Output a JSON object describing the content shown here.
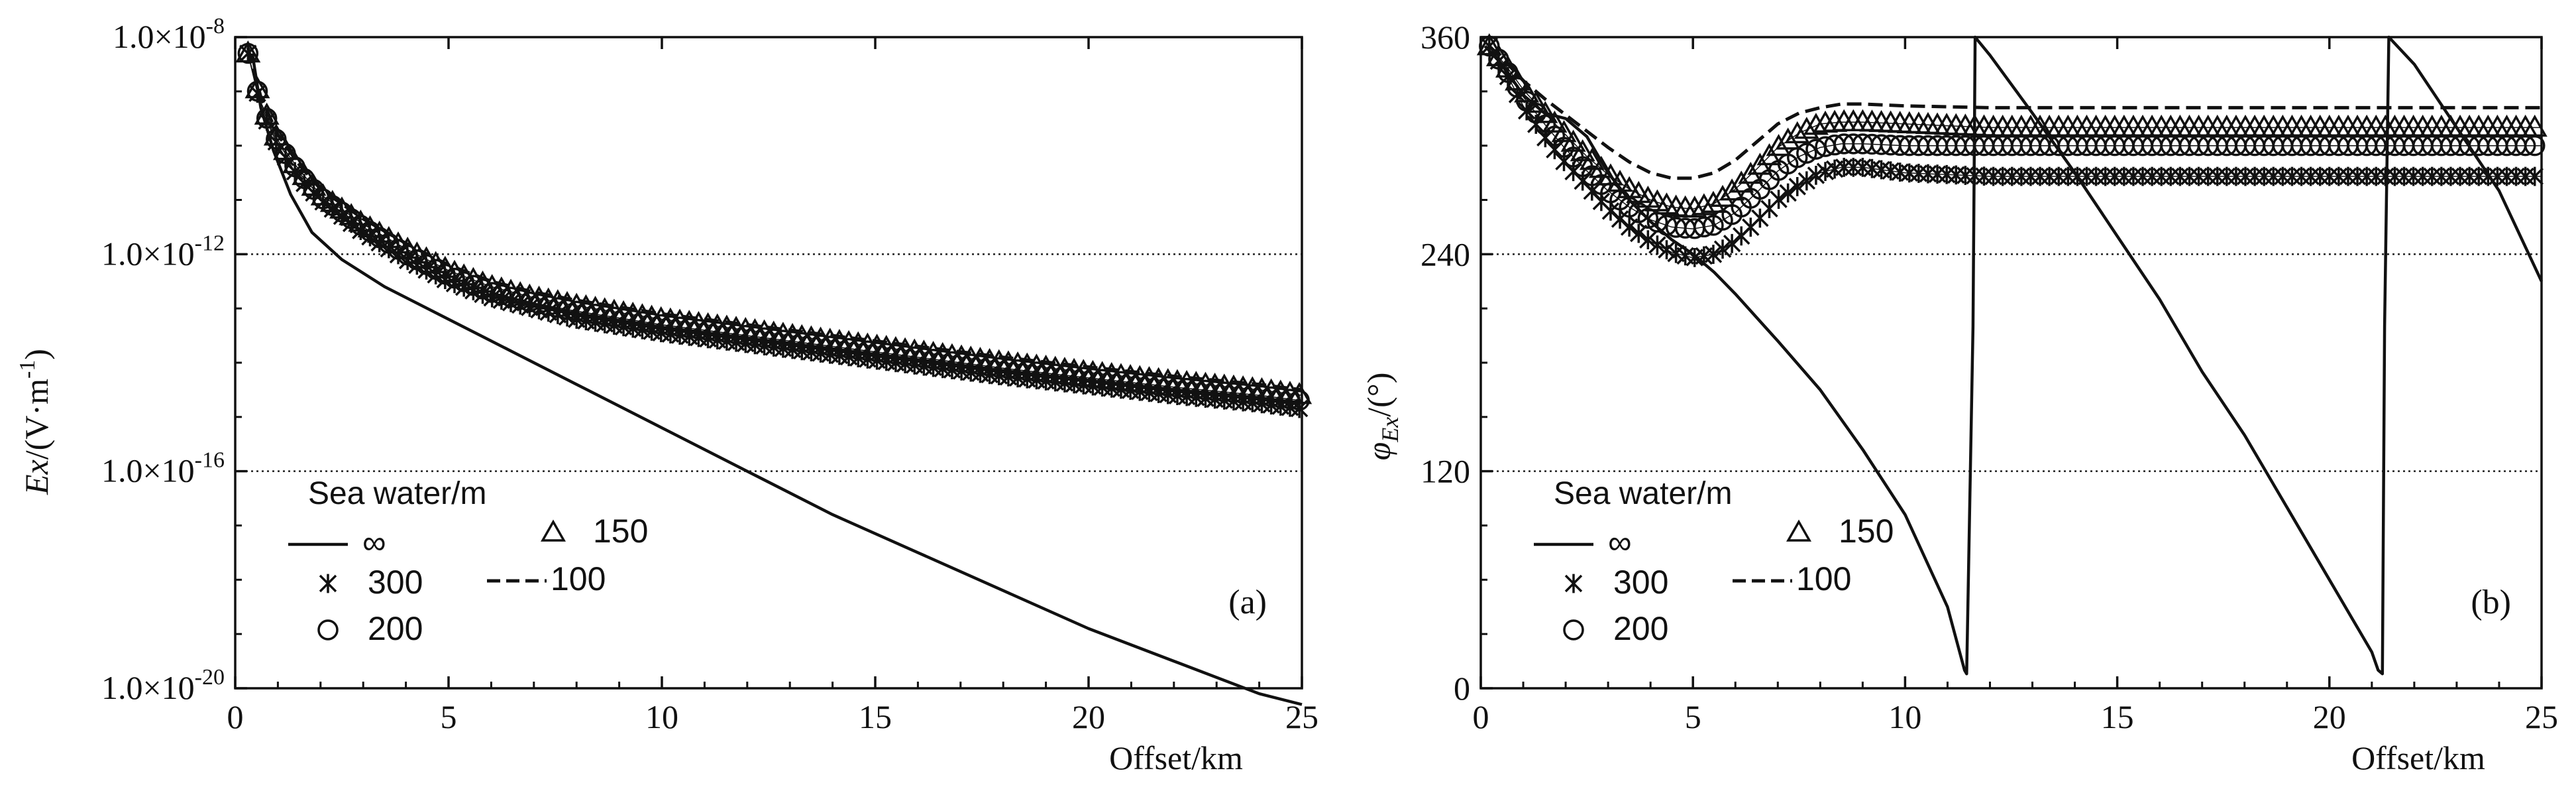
{
  "chart_data": [
    {
      "type": "line",
      "panel": "(a)",
      "title": "",
      "xlabel": "Offset/km",
      "ylabel": "Ex/(V·m-1)",
      "ylabel_parts": {
        "italic": "Ex",
        "pre": "/(V·m",
        "sup": "-1",
        "post": ")"
      },
      "yscale": "log",
      "xlim": [
        0,
        25
      ],
      "ylim_exp": [
        -20,
        -8
      ],
      "x_ticks": [
        0,
        5,
        10,
        15,
        20,
        25
      ],
      "y_ticks": [
        "1.0×10-8",
        "1.0×10-12",
        "1.0×10-16",
        "1.0×10-20"
      ],
      "y_tick_exps": [
        -8,
        -12,
        -16,
        -20
      ],
      "gridlines_exp": [
        -12,
        -16
      ],
      "legend": {
        "title": "Sea water/m",
        "items": [
          {
            "label": "∞",
            "symbol": "line"
          },
          {
            "label": "150",
            "symbol": "triangle"
          },
          {
            "label": "300",
            "symbol": "star"
          },
          {
            "label": "100",
            "symbol": "dashed"
          },
          {
            "label": "200",
            "symbol": "circle"
          }
        ]
      },
      "series": [
        {
          "name": "∞",
          "marker": "line",
          "x": [
            0.4,
            0.6,
            0.9,
            1.3,
            1.8,
            2.5,
            3.5,
            5,
            6.5,
            8,
            10,
            12,
            14,
            16,
            18,
            20,
            22,
            24,
            25
          ],
          "log10": [
            -8.3,
            -9.3,
            -10.1,
            -10.9,
            -11.6,
            -12.1,
            -12.6,
            -13.2,
            -13.8,
            -14.4,
            -15.2,
            -16.0,
            -16.8,
            -17.5,
            -18.2,
            -18.9,
            -19.5,
            -20.1,
            -20.3
          ]
        },
        {
          "name": "300",
          "marker": "star",
          "x": [
            0.3,
            0.6,
            1,
            1.5,
            2,
            3,
            4,
            5,
            6,
            7,
            8,
            10,
            12,
            14,
            16,
            18,
            20,
            22,
            24,
            25
          ],
          "log10": [
            -8.3,
            -9.3,
            -10.0,
            -10.6,
            -11.0,
            -11.6,
            -12.1,
            -12.5,
            -12.8,
            -13.0,
            -13.2,
            -13.45,
            -13.65,
            -13.85,
            -14.05,
            -14.25,
            -14.42,
            -14.6,
            -14.75,
            -14.85
          ]
        },
        {
          "name": "200",
          "marker": "circle",
          "x": [
            0.3,
            0.6,
            1,
            1.5,
            2,
            3,
            4,
            5,
            6,
            7,
            8,
            10,
            12,
            14,
            16,
            18,
            20,
            22,
            24,
            25
          ],
          "log10": [
            -8.3,
            -9.25,
            -9.95,
            -10.5,
            -10.95,
            -11.5,
            -12.0,
            -12.4,
            -12.7,
            -12.9,
            -13.05,
            -13.3,
            -13.5,
            -13.7,
            -13.9,
            -14.1,
            -14.28,
            -14.45,
            -14.6,
            -14.7
          ]
        },
        {
          "name": "150",
          "marker": "triangle",
          "x": [
            0.3,
            0.6,
            1,
            1.5,
            2,
            3,
            4,
            5,
            6,
            7,
            8,
            10,
            12,
            14,
            16,
            18,
            20,
            22,
            24,
            25
          ],
          "log10": [
            -8.3,
            -9.2,
            -9.9,
            -10.45,
            -10.9,
            -11.45,
            -11.9,
            -12.3,
            -12.6,
            -12.8,
            -12.95,
            -13.2,
            -13.4,
            -13.6,
            -13.8,
            -14.0,
            -14.18,
            -14.35,
            -14.5,
            -14.6
          ]
        },
        {
          "name": "100",
          "marker": "dashed",
          "x": [
            0.3,
            0.6,
            1,
            1.5,
            2,
            3,
            4,
            5,
            6,
            7,
            8,
            10,
            12,
            14,
            16,
            18,
            20,
            22,
            24,
            25
          ],
          "log10": [
            -8.2,
            -9.1,
            -9.8,
            -10.35,
            -10.8,
            -11.35,
            -11.8,
            -12.2,
            -12.5,
            -12.7,
            -12.85,
            -13.1,
            -13.3,
            -13.5,
            -13.7,
            -13.9,
            -14.08,
            -14.25,
            -14.4,
            -14.5
          ]
        }
      ]
    },
    {
      "type": "line",
      "panel": "(b)",
      "title": "",
      "xlabel": "Offset/km",
      "ylabel": "φEx/(°)",
      "ylabel_parts": {
        "phi": "φ",
        "sub": "Ex",
        "post": "/(°)"
      },
      "xlim": [
        0,
        25
      ],
      "ylim": [
        0,
        360
      ],
      "x_ticks": [
        0,
        5,
        10,
        15,
        20,
        25
      ],
      "y_ticks": [
        0,
        120,
        240,
        360
      ],
      "gridlines": [
        120,
        240
      ],
      "legend": {
        "title": "Sea water/m",
        "items": [
          {
            "label": "∞",
            "symbol": "line"
          },
          {
            "label": "150",
            "symbol": "triangle"
          },
          {
            "label": "300",
            "symbol": "star"
          },
          {
            "label": "100",
            "symbol": "dashed"
          },
          {
            "label": "200",
            "symbol": "circle"
          }
        ]
      },
      "series": [
        {
          "name": "∞",
          "marker": "line",
          "x": [
            0.1,
            0.5,
            1.0,
            1.5,
            2.0,
            2.5,
            3.0,
            3.5,
            4.0,
            4.5,
            5.0,
            5.5,
            6,
            7,
            8,
            9,
            10,
            11,
            11.4,
            11.45,
            11.6,
            11.65,
            12,
            13,
            14,
            15,
            16,
            17,
            18,
            19,
            20,
            21,
            21.15,
            21.25,
            21.3,
            21.4,
            22,
            23,
            24,
            25
          ],
          "y": [
            355,
            345,
            328,
            318,
            315,
            305,
            285,
            270,
            258,
            248,
            240,
            230,
            218,
            192,
            165,
            132,
            96,
            45,
            10,
            8,
            200,
            360,
            350,
            318,
            285,
            250,
            215,
            175,
            140,
            100,
            60,
            20,
            10,
            8,
            200,
            360,
            345,
            310,
            275,
            225
          ]
        },
        {
          "name": "300",
          "marker": "star",
          "x": [
            0.2,
            0.6,
            1,
            1.5,
            2,
            2.5,
            3,
            3.5,
            4,
            4.5,
            5,
            5.5,
            6,
            6.5,
            7,
            7.5,
            8,
            8.5,
            9,
            10,
            12,
            14,
            16,
            18,
            20,
            22,
            24,
            25
          ],
          "y": [
            355,
            340,
            322,
            305,
            290,
            278,
            265,
            255,
            247,
            241,
            238,
            240,
            247,
            258,
            270,
            278,
            285,
            288,
            288,
            285,
            283,
            283,
            283,
            283,
            283,
            283,
            283,
            283
          ]
        },
        {
          "name": "200",
          "marker": "circle",
          "x": [
            0.2,
            0.6,
            1,
            1.5,
            2,
            2.5,
            3,
            3.5,
            4,
            4.5,
            5,
            5.5,
            6,
            6.5,
            7,
            7.5,
            8,
            8.5,
            9,
            10,
            12,
            14,
            16,
            18,
            20,
            22,
            24,
            25
          ],
          "y": [
            355,
            342,
            327,
            312,
            298,
            286,
            275,
            266,
            259,
            255,
            254,
            256,
            263,
            274,
            286,
            294,
            299,
            301,
            301,
            300,
            300,
            300,
            300,
            300,
            300,
            300,
            300,
            300
          ]
        },
        {
          "name": "150",
          "marker": "triangle",
          "x": [
            0.2,
            0.6,
            1,
            1.5,
            2,
            2.5,
            3,
            3.5,
            4,
            4.5,
            5,
            5.5,
            6,
            6.5,
            7,
            7.5,
            8,
            8.5,
            9,
            10,
            12,
            14,
            16,
            18,
            20,
            22,
            24,
            25
          ],
          "y": [
            355,
            344,
            331,
            318,
            306,
            294,
            284,
            276,
            270,
            266,
            265,
            268,
            276,
            287,
            299,
            307,
            312,
            313,
            313,
            312,
            310,
            310,
            310,
            310,
            310,
            310,
            310,
            310
          ]
        },
        {
          "name": "100",
          "marker": "dashed",
          "x": [
            0.2,
            0.6,
            1,
            1.5,
            2,
            2.5,
            3,
            3.5,
            4,
            4.5,
            5,
            5.5,
            6,
            6.5,
            7,
            7.5,
            8,
            8.5,
            9,
            10,
            12,
            14,
            16,
            18,
            20,
            22,
            24,
            25
          ],
          "y": [
            355,
            346,
            336,
            326,
            317,
            308,
            299,
            291,
            285,
            282,
            282,
            285,
            292,
            302,
            312,
            318,
            321,
            323,
            323,
            322,
            321,
            321,
            321,
            321,
            321,
            321,
            321,
            321
          ]
        }
      ]
    }
  ]
}
